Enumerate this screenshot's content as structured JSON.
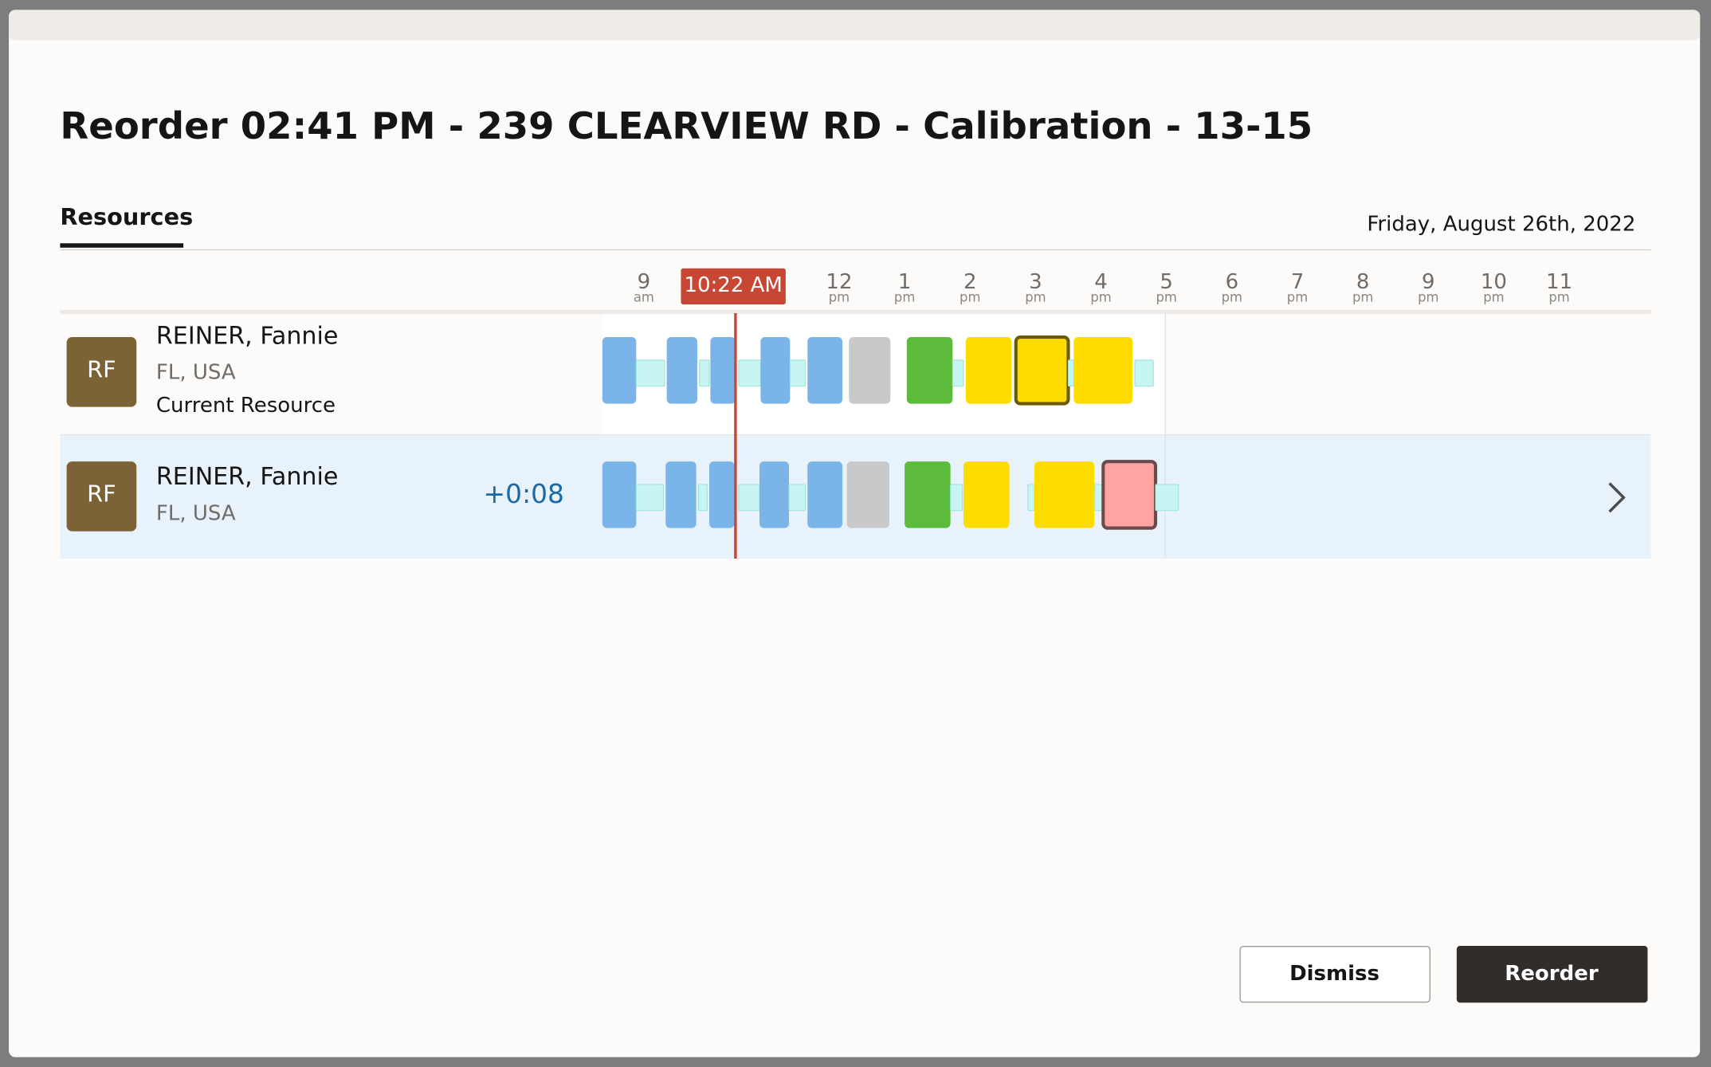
{
  "header": {
    "title": "Reorder 02:41 PM - 239 CLEARVIEW RD - Calibration - 13-15"
  },
  "tabs": [
    "Resources"
  ],
  "date": "Friday, August 26th, 2022",
  "timeline": {
    "current_time": "10:22 AM",
    "hours": [
      {
        "hour": "9",
        "period": "am"
      },
      {
        "hour": "12",
        "period": "pm"
      },
      {
        "hour": "1",
        "period": "pm"
      },
      {
        "hour": "2",
        "period": "pm"
      },
      {
        "hour": "3",
        "period": "pm"
      },
      {
        "hour": "4",
        "period": "pm"
      },
      {
        "hour": "5",
        "period": "pm"
      },
      {
        "hour": "6",
        "period": "pm"
      },
      {
        "hour": "7",
        "period": "pm"
      },
      {
        "hour": "8",
        "period": "pm"
      },
      {
        "hour": "9",
        "period": "pm"
      },
      {
        "hour": "10",
        "period": "pm"
      },
      {
        "hour": "11",
        "period": "pm"
      }
    ]
  },
  "resources": [
    {
      "initials": "RF",
      "name": "REINER, Fannie",
      "location": "FL, USA",
      "note": "Current Resource"
    },
    {
      "initials": "RF",
      "name": "REINER, Fannie",
      "location": "FL, USA",
      "delta": "+0:08"
    }
  ],
  "buttons": {
    "dismiss": "Dismiss",
    "reorder": "Reorder"
  }
}
